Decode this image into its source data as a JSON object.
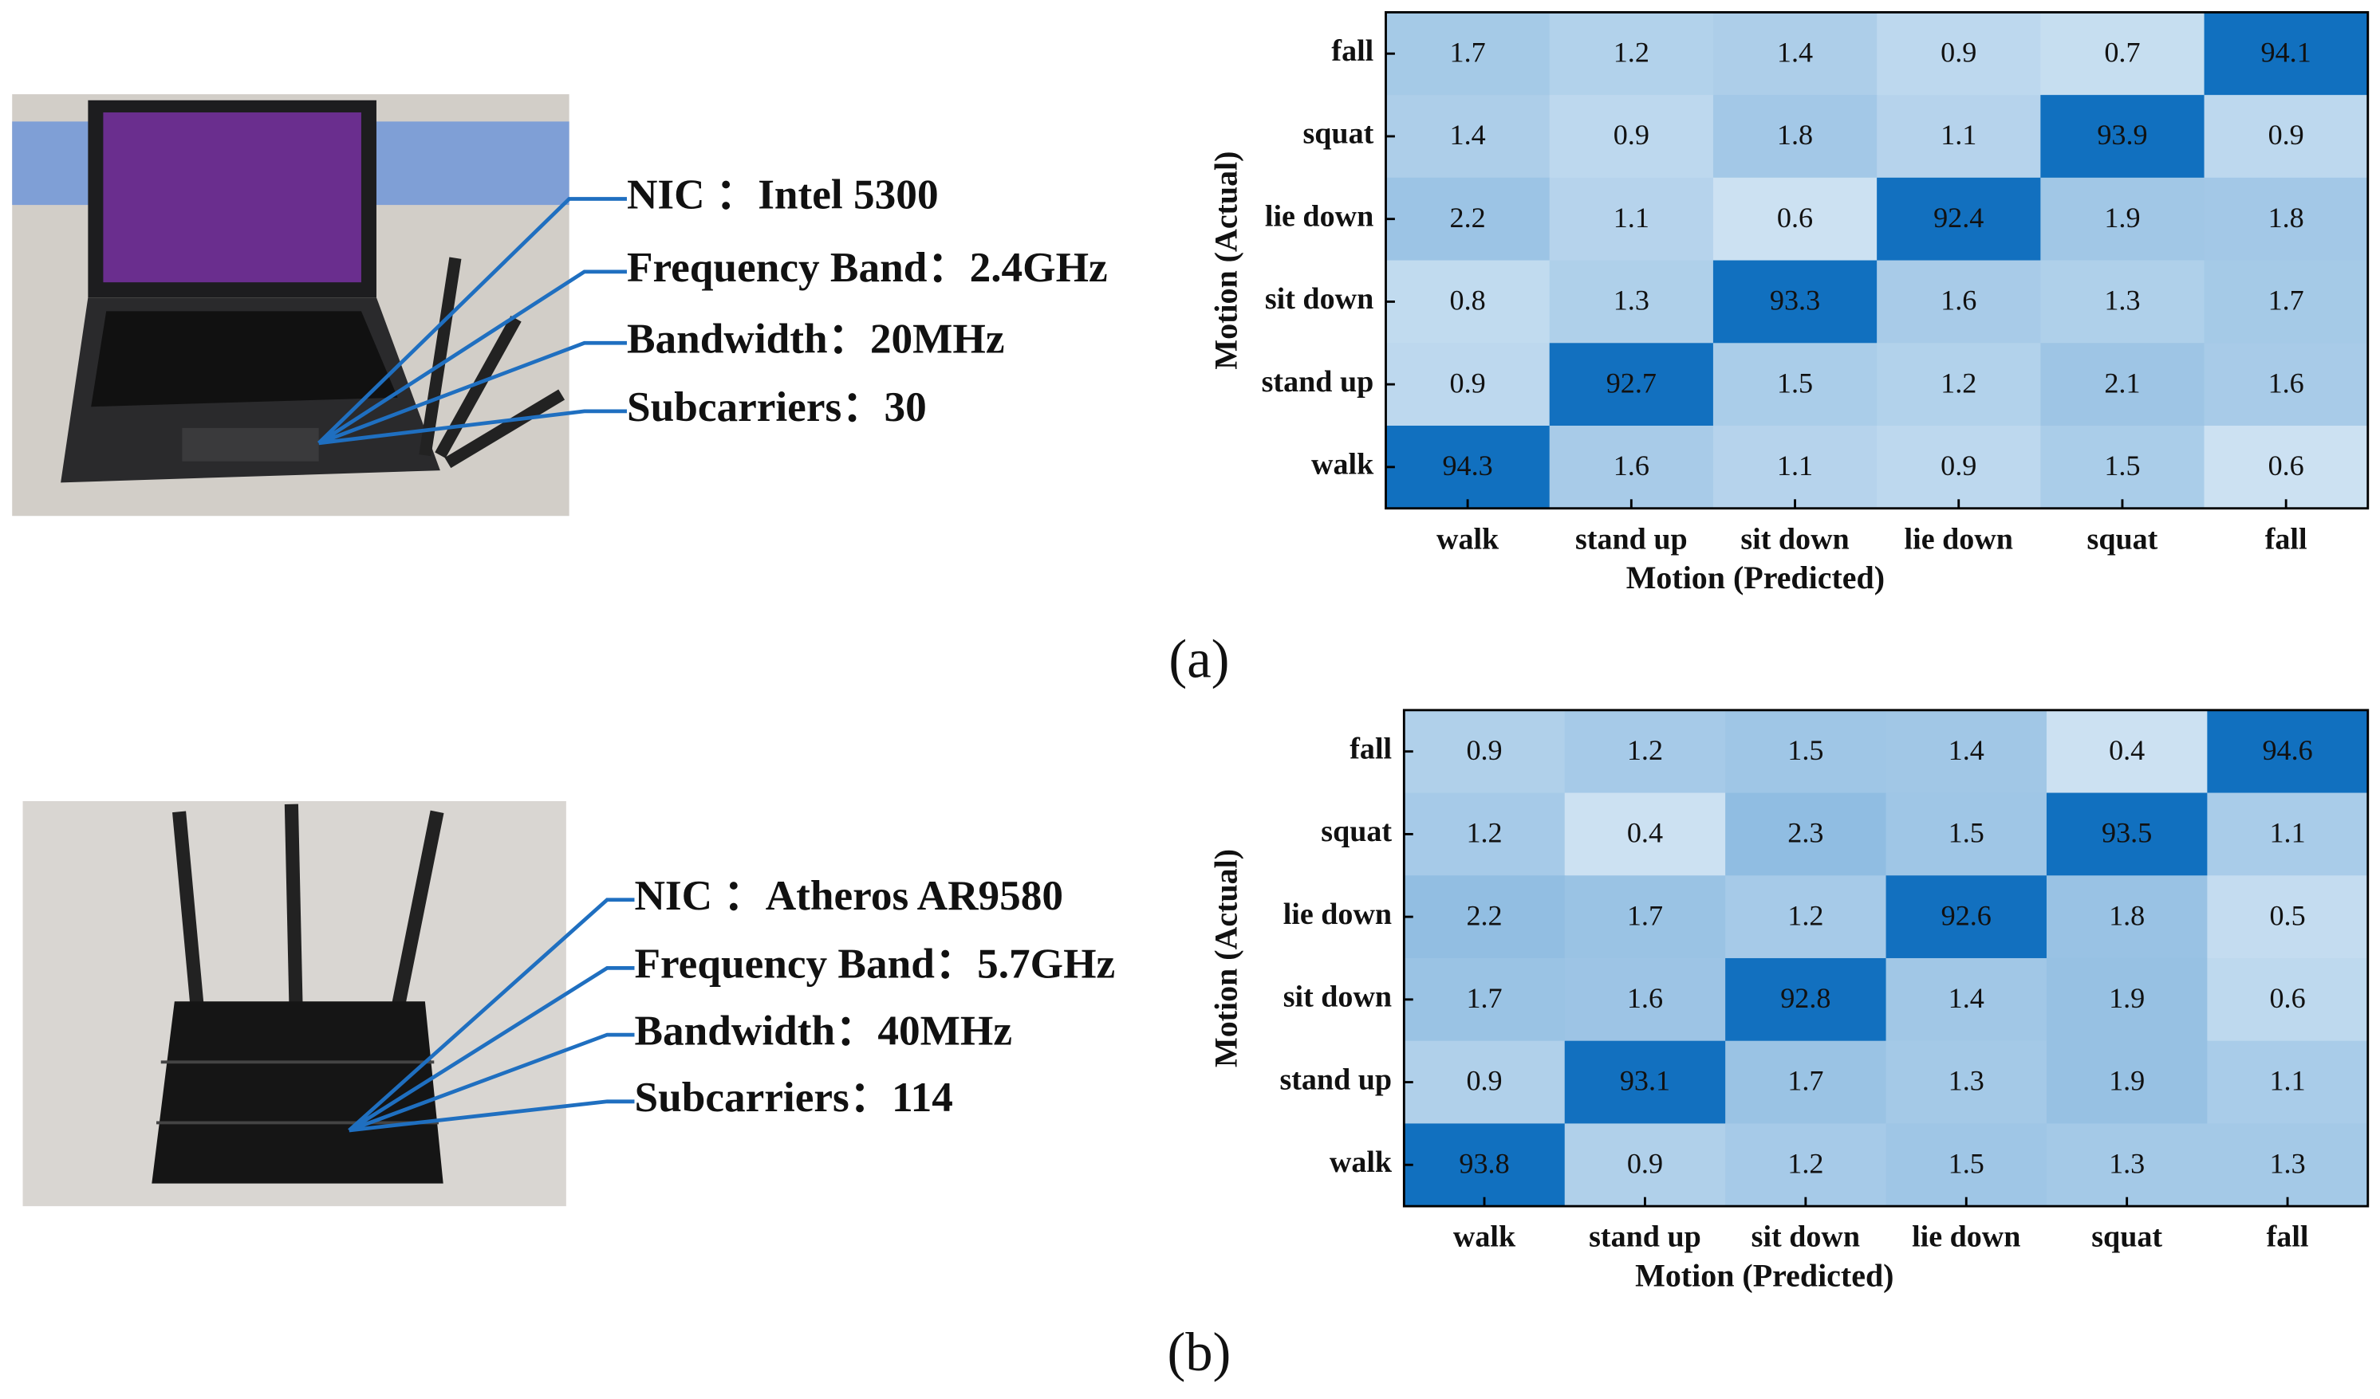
{
  "chart_data": [
    {
      "type": "heatmap",
      "x_label": "Motion (Predicted)",
      "y_label": "Motion (Actual)",
      "x_categories": [
        "walk",
        "stand up",
        "sit down",
        "lie down",
        "squat",
        "fall"
      ],
      "y_categories": [
        "fall",
        "squat",
        "lie down",
        "sit down",
        "stand up",
        "walk"
      ],
      "values": [
        [
          1.7,
          1.2,
          1.4,
          0.9,
          0.7,
          94.1
        ],
        [
          1.4,
          0.9,
          1.8,
          1.1,
          93.9,
          0.9
        ],
        [
          2.2,
          1.1,
          0.6,
          92.4,
          1.9,
          1.8
        ],
        [
          0.8,
          1.3,
          93.3,
          1.6,
          1.3,
          1.7
        ],
        [
          0.9,
          92.7,
          1.5,
          1.2,
          2.1,
          1.6
        ],
        [
          94.3,
          1.6,
          1.1,
          0.9,
          1.5,
          0.6
        ]
      ],
      "colors": {
        "low": "#cce1f2",
        "high": "#1170bf"
      }
    },
    {
      "type": "heatmap",
      "x_label": "Motion (Predicted)",
      "y_label": "Motion (Actual)",
      "x_categories": [
        "walk",
        "stand up",
        "sit down",
        "lie down",
        "squat",
        "fall"
      ],
      "y_categories": [
        "fall",
        "squat",
        "lie down",
        "sit down",
        "stand up",
        "walk"
      ],
      "values": [
        [
          0.9,
          1.2,
          1.5,
          1.4,
          0.4,
          94.6
        ],
        [
          1.2,
          0.4,
          2.3,
          1.5,
          93.5,
          1.1
        ],
        [
          2.2,
          1.7,
          1.2,
          92.6,
          1.8,
          0.5
        ],
        [
          1.7,
          1.6,
          92.8,
          1.4,
          1.9,
          0.6
        ],
        [
          0.9,
          93.1,
          1.7,
          1.3,
          1.9,
          1.1
        ],
        [
          93.8,
          0.9,
          1.2,
          1.5,
          1.3,
          1.3
        ]
      ],
      "colors": {
        "low": "#cce1f2",
        "high": "#1170bf"
      }
    }
  ],
  "panels": [
    {
      "label": "(a)",
      "specs": [
        "NIC ：Intel 5300",
        "Frequency Band：2.4GHz",
        "Bandwidth：20MHz",
        "Subcarriers：30"
      ]
    },
    {
      "label": "(b)",
      "specs": [
        "NIC ：Atheros AR9580",
        "Frequency Band：5.7GHz",
        "Bandwidth：40MHz",
        "Subcarriers：114"
      ]
    }
  ]
}
